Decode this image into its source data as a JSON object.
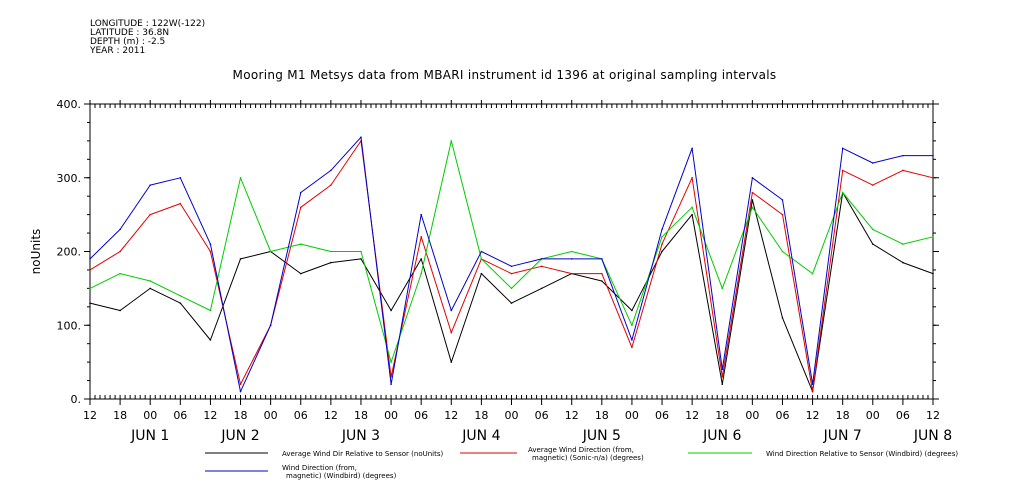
{
  "meta": {
    "longitude": "LONGITUDE : 122W(-122)",
    "latitude": "LATITUDE : 36.8N",
    "depth": "DEPTH (m) : -2.5",
    "year": "YEAR : 2011"
  },
  "chart_data": {
    "type": "line",
    "title": "Mooring M1 Metsys data from MBARI instrument id 1396 at original sampling intervals",
    "ylabel": "noUnits",
    "ylim": [
      0,
      400
    ],
    "yticks": [
      0,
      100,
      200,
      300,
      400
    ],
    "ytick_labels": [
      "0.",
      "100.",
      "200.",
      "300.",
      "400."
    ],
    "x_hour_ticks": [
      "12",
      "18",
      "00",
      "06",
      "12",
      "18",
      "00",
      "06",
      "12",
      "18",
      "00",
      "06",
      "12",
      "18",
      "00",
      "06",
      "12",
      "18",
      "00",
      "06",
      "12",
      "18",
      "00",
      "06",
      "12",
      "18",
      "00",
      "06",
      "12"
    ],
    "x_day_labels": [
      {
        "label": "JUN  1",
        "tick": 2
      },
      {
        "label": "JUN  2",
        "tick": 5
      },
      {
        "label": "JUN  3",
        "tick": 9
      },
      {
        "label": "JUN  4",
        "tick": 13
      },
      {
        "label": "JUN  5",
        "tick": 17
      },
      {
        "label": "JUN  6",
        "tick": 21
      },
      {
        "label": "JUN  7",
        "tick": 25
      },
      {
        "label": "JUN  8",
        "tick": 28
      }
    ],
    "series": [
      {
        "name": "Average Wind Dir Relative to Sensor (noUnits)",
        "color": "#000000",
        "x": [
          0,
          1,
          2,
          3,
          4,
          5,
          6,
          7,
          8,
          9,
          10,
          11,
          12,
          13,
          14,
          15,
          16,
          17,
          18,
          19,
          20,
          21,
          22,
          23,
          24,
          25,
          26,
          27,
          28
        ],
        "y": [
          130,
          120,
          150,
          130,
          80,
          190,
          200,
          170,
          185,
          190,
          120,
          190,
          50,
          170,
          130,
          150,
          170,
          160,
          120,
          200,
          250,
          20,
          270,
          110,
          10,
          280,
          210,
          185,
          170
        ]
      },
      {
        "name": "Average Wind Direction (from, magnetic) (Sonic-n/a) (degrees)",
        "color": "#e00000",
        "x": [
          0,
          1,
          2,
          3,
          4,
          5,
          6,
          7,
          8,
          9,
          10,
          11,
          12,
          13,
          14,
          15,
          16,
          17,
          18,
          19,
          20,
          21,
          22,
          23,
          24,
          25,
          26,
          27,
          28
        ],
        "y": [
          175,
          200,
          250,
          265,
          200,
          20,
          100,
          260,
          290,
          350,
          30,
          220,
          90,
          190,
          170,
          180,
          170,
          170,
          70,
          210,
          300,
          30,
          280,
          250,
          10,
          310,
          290,
          310,
          300
        ]
      },
      {
        "name": "Wind Direction Relative to Sensor (Windbird) (degrees)",
        "color": "#00cc00",
        "x": [
          0,
          1,
          2,
          3,
          4,
          5,
          6,
          7,
          8,
          9,
          10,
          11,
          12,
          13,
          14,
          15,
          16,
          17,
          18,
          19,
          20,
          21,
          22,
          23,
          24,
          25,
          26,
          27,
          28
        ],
        "y": [
          150,
          170,
          160,
          140,
          120,
          300,
          200,
          210,
          200,
          200,
          50,
          170,
          350,
          190,
          150,
          190,
          200,
          190,
          100,
          220,
          260,
          150,
          260,
          200,
          170,
          280,
          230,
          210,
          220
        ]
      },
      {
        "name": "Wind Direction (from, magnetic) (Windbird) (degrees)",
        "color": "#0000cc",
        "x": [
          0,
          1,
          2,
          3,
          4,
          5,
          6,
          7,
          8,
          9,
          10,
          11,
          12,
          13,
          14,
          15,
          16,
          17,
          18,
          19,
          20,
          21,
          22,
          23,
          24,
          25,
          26,
          27,
          28
        ],
        "y": [
          190,
          230,
          290,
          300,
          210,
          10,
          100,
          280,
          310,
          355,
          20,
          250,
          120,
          200,
          180,
          190,
          190,
          190,
          80,
          230,
          340,
          40,
          300,
          270,
          20,
          340,
          320,
          330,
          330
        ]
      }
    ]
  },
  "legend": [
    {
      "label": "Average Wind Dir Relative to Sensor (noUnits)",
      "color": "#000000"
    },
    {
      "label": "Average Wind Direction (from,",
      "label2": "magnetic) (Sonic-n/a) (degrees)",
      "color": "#e00000"
    },
    {
      "label": "Wind Direction Relative to Sensor (Windbird) (degrees)",
      "color": "#00cc00"
    },
    {
      "label": "Wind Direction (from,",
      "label2": "magnetic) (Windbird) (degrees)",
      "color": "#0000cc"
    }
  ]
}
